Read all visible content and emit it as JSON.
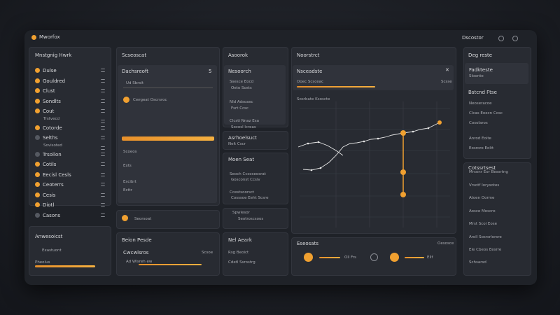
{
  "header": {
    "app": "Mworfox",
    "user": "Dscostor"
  },
  "sidebar": {
    "title": "Mnstgnig Hwrk",
    "items": [
      "Dulse",
      "Gouldred",
      "Clust",
      "Sondlts",
      "Cout",
      "Trstvecd",
      "Cotorde",
      "Selths",
      "Sovisoted",
      "Trsollon",
      "Cotils",
      "Eecisl Cesls",
      "Ceoterrs",
      "Cesis",
      "Diotl",
      "Casons"
    ]
  },
  "sidebar_bottom": {
    "title": "Anwesoicst",
    "items": [
      "Exastuont",
      "Pheolus"
    ]
  },
  "panel_a": {
    "title": "Scseoscat",
    "sub": "Dachsreoft",
    "sub_value": "5",
    "field": "Ud Sbrsit",
    "option": "Cwrgeat Oscrsroc",
    "rows": [
      "Scoeos",
      "Exts",
      "Escibrt",
      "Ecttr"
    ],
    "footer": "Seorsoat"
  },
  "panel_a2": {
    "title": "Beion Pesde",
    "row": "Cwcwlsros",
    "row_tag": "Scsoe",
    "field": "Ad Wlsreh ew"
  },
  "panel_b": {
    "title": "Asoorok",
    "sub": "Nesoorch",
    "items": [
      "Ssesce Eocd",
      "Oeto Sosts",
      "Nld Adsoasc",
      "Fsrt Ccsc",
      "Clcsti Nnaz Esa",
      "Socosl lcreas"
    ]
  },
  "panel_b2": {
    "title": "Asrhoelsuct",
    "sub": "Nelt Cscr"
  },
  "panel_b3": {
    "title": "Moen Seat",
    "items": [
      "Seoch Ccsoseosrat",
      "Gosconst Ccsiv",
      "Ccestsoorsct",
      "Cosssoe Eeht Scsre"
    ]
  },
  "panel_b4": {
    "items": [
      "Spwlesor",
      "Seotroscsoos"
    ]
  },
  "panel_b5": {
    "title": "Nel Aeark",
    "items": [
      "Rsg Beoict",
      "Cdetl Ssrostrg"
    ]
  },
  "panel_c": {
    "title": "Noorstrct",
    "sub": "Nsceadste",
    "field": "Ooec Scsceac",
    "field_tag": "Scsse",
    "chart_title": "Sosrbate Ksoscte"
  },
  "panel_c2": {
    "title": "Eseosats",
    "tag": "Oesosce",
    "ctrl1": "Oll Frs",
    "ctrl2": "Ellf"
  },
  "right": {
    "title": "Deg reste",
    "items": [
      "Fadkteste",
      "Sloonte"
    ],
    "group": "Bstcnd Ftse",
    "group_items": [
      "Neoseracoe",
      "Clcas Eoecn Cosc",
      "Cosolaros",
      "Anrod Eoite",
      "Eosrore Eoltt"
    ]
  },
  "right2": {
    "title": "Cotssrtsest",
    "items": [
      "Mrsonr Eor Bessrtng",
      "Vrsotf Iorysotes",
      "Atoen Oorme",
      "Aosce Moscre",
      "Mrst Scoi Eose",
      "Aroll Sosrsrlorsre",
      "Ele Cbeos Eesrre"
    ],
    "footer": "Schsarsd"
  }
}
